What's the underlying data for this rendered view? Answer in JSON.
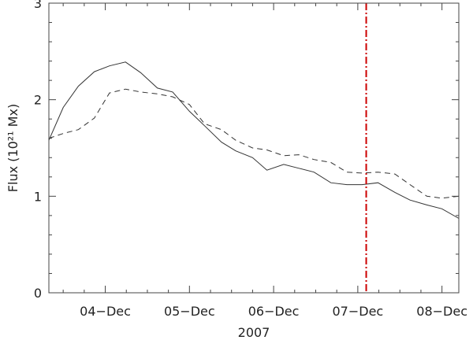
{
  "chart_data": {
    "type": "line",
    "title": "",
    "xlabel": "2007",
    "ylabel": "Flux (10²¹ Mx)",
    "xlim": [
      3.33,
      8.2
    ],
    "ylim": [
      0,
      3
    ],
    "grid": false,
    "x_ticks": [
      {
        "value": 4,
        "label": "04−Dec"
      },
      {
        "value": 5,
        "label": "05−Dec"
      },
      {
        "value": 6,
        "label": "06−Dec"
      },
      {
        "value": 7,
        "label": "07−Dec"
      },
      {
        "value": 8,
        "label": "08−Dec"
      }
    ],
    "y_ticks": [
      {
        "value": 0,
        "label": "0"
      },
      {
        "value": 1,
        "label": "1"
      },
      {
        "value": 2,
        "label": "2"
      },
      {
        "value": 3,
        "label": "3"
      }
    ],
    "series": [
      {
        "style": "solid",
        "color": "#333333",
        "x": [
          3.33,
          3.5,
          3.68,
          3.87,
          4.05,
          4.24,
          4.42,
          4.62,
          4.8,
          5.0,
          5.18,
          5.38,
          5.55,
          5.75,
          5.92,
          6.12,
          6.3,
          6.48,
          6.68,
          6.87,
          7.05,
          7.24,
          7.44,
          7.62,
          7.82,
          8.0,
          8.2
        ],
        "values": [
          1.58,
          1.92,
          2.14,
          2.29,
          2.35,
          2.39,
          2.28,
          2.12,
          2.08,
          1.88,
          1.73,
          1.56,
          1.47,
          1.4,
          1.27,
          1.33,
          1.29,
          1.25,
          1.14,
          1.12,
          1.12,
          1.14,
          1.04,
          0.96,
          0.91,
          0.87,
          0.77
        ]
      },
      {
        "style": "dashed",
        "color": "#333333",
        "x": [
          3.33,
          3.5,
          3.68,
          3.87,
          4.05,
          4.24,
          4.42,
          4.62,
          4.8,
          5.0,
          5.18,
          5.38,
          5.55,
          5.75,
          5.92,
          6.12,
          6.3,
          6.48,
          6.68,
          6.87,
          7.05,
          7.24,
          7.44,
          7.62,
          7.82,
          8.0,
          8.2
        ],
        "values": [
          1.6,
          1.65,
          1.69,
          1.81,
          2.07,
          2.11,
          2.08,
          2.06,
          2.03,
          1.95,
          1.75,
          1.69,
          1.58,
          1.5,
          1.48,
          1.42,
          1.43,
          1.38,
          1.35,
          1.25,
          1.24,
          1.25,
          1.23,
          1.12,
          1.0,
          0.98,
          1.0
        ]
      }
    ],
    "reference_lines": [
      {
        "orientation": "vertical",
        "x": 7.1,
        "color": "#cc0000",
        "style": "dash-dot"
      }
    ]
  }
}
